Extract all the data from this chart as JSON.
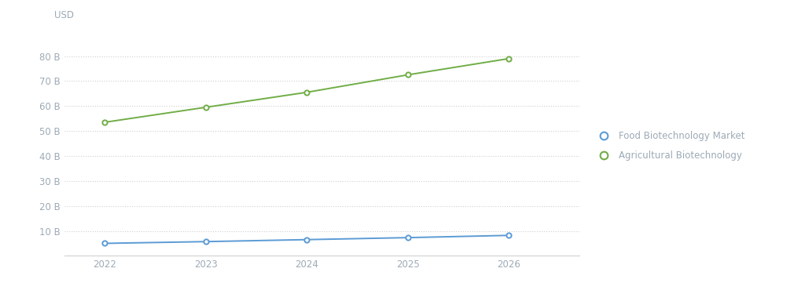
{
  "years": [
    2022,
    2023,
    2024,
    2025,
    2026
  ],
  "food_biotech": [
    5.0,
    5.7,
    6.5,
    7.3,
    8.2
  ],
  "agri_biotech": [
    53.5,
    59.5,
    65.5,
    72.5,
    79.0
  ],
  "food_color": "#5b9bd5",
  "agri_color": "#70ad47",
  "ylabel": "USD",
  "yticks": [
    10,
    20,
    30,
    40,
    50,
    60,
    70,
    80
  ],
  "ytick_labels": [
    "10 B",
    "20 B",
    "30 B",
    "40 B",
    "50 B",
    "60 B",
    "70 B",
    "80 B"
  ],
  "ylim": [
    0,
    88
  ],
  "xlim": [
    2021.6,
    2026.7
  ],
  "bg_color": "#ffffff",
  "grid_color": "#d0d0d0",
  "legend_food": "Food Biotechnology Market",
  "legend_agri": "Agricultural Biotechnology",
  "label_color": "#9daab6"
}
